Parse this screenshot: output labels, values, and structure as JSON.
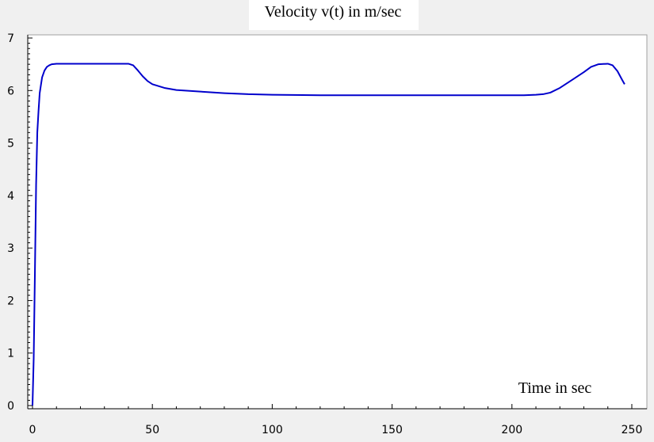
{
  "chart_data": {
    "type": "line",
    "title": "Velocity v(t) in m/sec",
    "xlabel": "Time in sec",
    "ylabel": "",
    "xlim": [
      0,
      250
    ],
    "ylim": [
      0,
      7
    ],
    "xticks": [
      0,
      50,
      100,
      150,
      200,
      250
    ],
    "yticks": [
      0,
      1,
      2,
      3,
      4,
      5,
      6,
      7
    ],
    "grid": false,
    "legend": "none",
    "series": [
      {
        "color": "#0000cc",
        "x": [
          0,
          0.5,
          1,
          1.5,
          2,
          2.5,
          3,
          3.5,
          4,
          5,
          6,
          7,
          8,
          10,
          15,
          20,
          30,
          40,
          42,
          44,
          46,
          48,
          50,
          55,
          60,
          70,
          80,
          90,
          100,
          120,
          150,
          180,
          200,
          205,
          210,
          213,
          216,
          220,
          225,
          230,
          233,
          236,
          240,
          242,
          244,
          246,
          247
        ],
        "y": [
          0,
          0.9,
          2.5,
          4.2,
          5.2,
          5.6,
          5.95,
          6.1,
          6.25,
          6.38,
          6.45,
          6.48,
          6.5,
          6.51,
          6.51,
          6.51,
          6.51,
          6.51,
          6.48,
          6.38,
          6.27,
          6.18,
          6.12,
          6.05,
          6.01,
          5.98,
          5.95,
          5.93,
          5.92,
          5.91,
          5.91,
          5.91,
          5.91,
          5.91,
          5.92,
          5.93,
          5.96,
          6.05,
          6.2,
          6.35,
          6.45,
          6.5,
          6.51,
          6.48,
          6.37,
          6.2,
          6.12
        ]
      }
    ]
  }
}
